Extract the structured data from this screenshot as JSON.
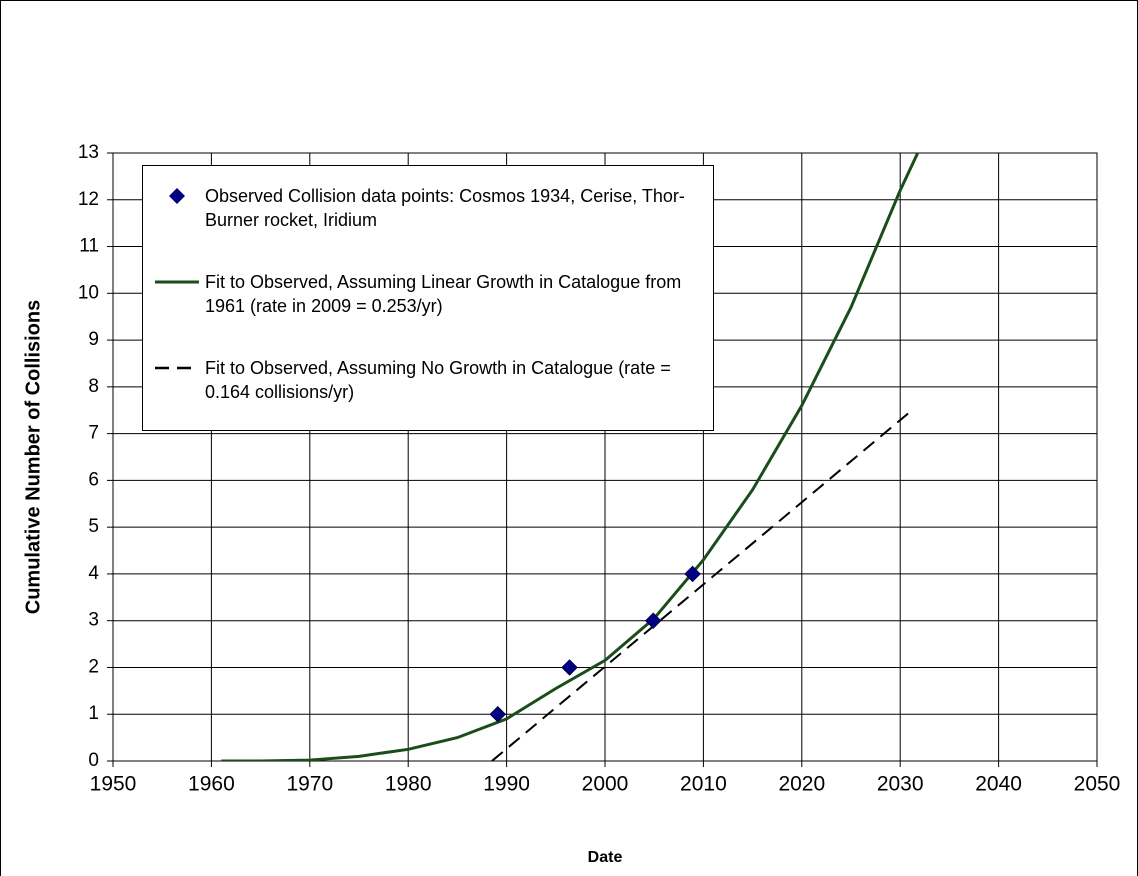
{
  "chart_data": {
    "type": "scatter-line",
    "xlabel": "Date",
    "ylabel": "Cumulative Number of Collisions",
    "xlim": [
      1950,
      2050
    ],
    "xticks": [
      1950,
      1960,
      1970,
      1980,
      1990,
      2000,
      2010,
      2020,
      2030,
      2040,
      2050
    ],
    "ylim": [
      0,
      13
    ],
    "yticks": [
      0,
      1,
      2,
      3,
      4,
      5,
      6,
      7,
      8,
      9,
      10,
      11,
      12,
      13
    ],
    "grid": true,
    "series": [
      {
        "name": "Observed Collision data points: Cosmos 1934, Cerise, Thor-Burner rocket, Iridium",
        "kind": "scatter",
        "color": "#000080",
        "x": [
          1989.1,
          1996.4,
          2004.9,
          2008.9
        ],
        "values": [
          1,
          2,
          3,
          4
        ]
      },
      {
        "name": "Fit to Observed, Assuming Linear Growth in Catalogue from 1961 (rate in 2009 = 0.253/yr)",
        "kind": "line",
        "color": "#1a4d1a",
        "x": [
          1961,
          1965,
          1970,
          1975,
          1980,
          1985,
          1990,
          1995,
          2000,
          2005,
          2010,
          2015,
          2020,
          2025,
          2030,
          2032
        ],
        "values": [
          0,
          0,
          0.02,
          0.1,
          0.25,
          0.5,
          0.9,
          1.55,
          2.15,
          3.05,
          4.3,
          5.8,
          7.6,
          9.7,
          12.2,
          13.1
        ]
      },
      {
        "name": "Fit to Observed, Assuming No Growth in Catalogue (rate = 0.164 collisions/yr)",
        "kind": "dashed",
        "color": "#000000",
        "x": [
          1986.8,
          2031.2
        ],
        "values": [
          -0.3,
          7.5
        ]
      }
    ]
  }
}
